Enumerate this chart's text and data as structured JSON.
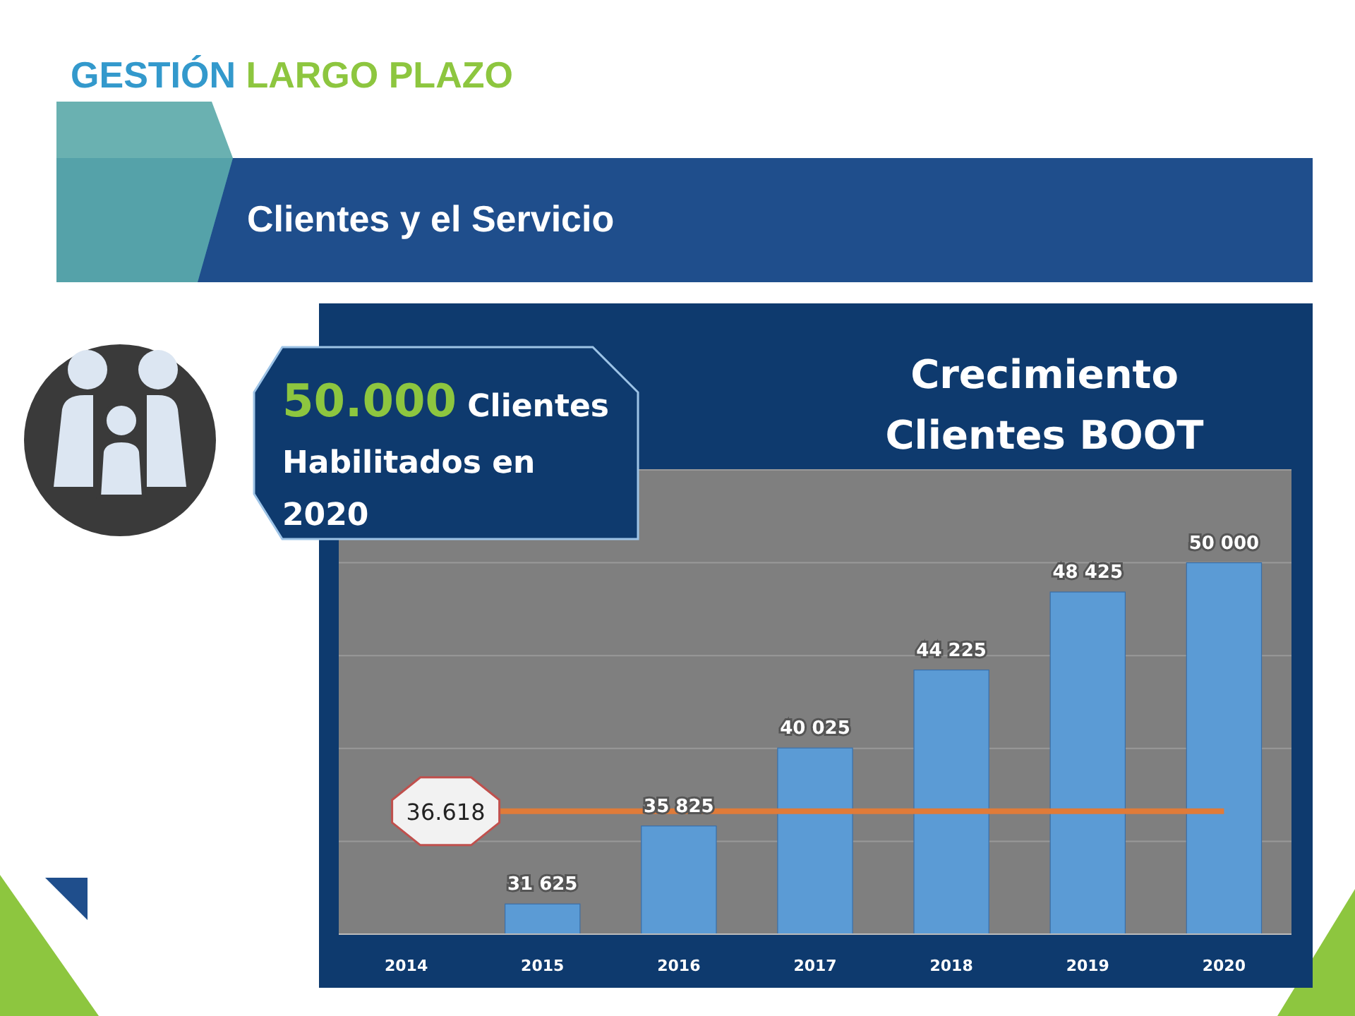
{
  "chart_data": {
    "type": "bar",
    "title": "Crecimiento Clientes BOOT",
    "subtitle": "Clientes y el Servicio",
    "annotations": [
      "GESTIÓN LARGO PLAZO",
      "50.000 Clientes Habilitados en 2020"
    ],
    "categories": [
      "2014",
      "2015",
      "2016",
      "2017",
      "2018",
      "2019",
      "2020"
    ],
    "values": [
      null,
      31625,
      35825,
      40025,
      44225,
      48425,
      50000
    ],
    "value_labels": [
      null,
      "31 625",
      "35 825",
      "40 025",
      "44 225",
      "48 425",
      "50 000"
    ],
    "color": "#5b9bd5",
    "ylim": [
      30000,
      55000
    ],
    "yticks": [
      {
        "value": 30000,
        "label": null
      },
      {
        "value": 35000,
        "label": null
      },
      {
        "value": 40000,
        "label": null
      },
      {
        "value": 45000,
        "label": null
      },
      {
        "value": 50000,
        "label": null
      },
      {
        "value": 55000,
        "label": null
      }
    ],
    "grid": "y",
    "tick_labels": "x",
    "ref_lines": [
      {
        "axis": "y",
        "value": 36618,
        "label": "36.618",
        "color": "#e07b39"
      }
    ]
  }
}
